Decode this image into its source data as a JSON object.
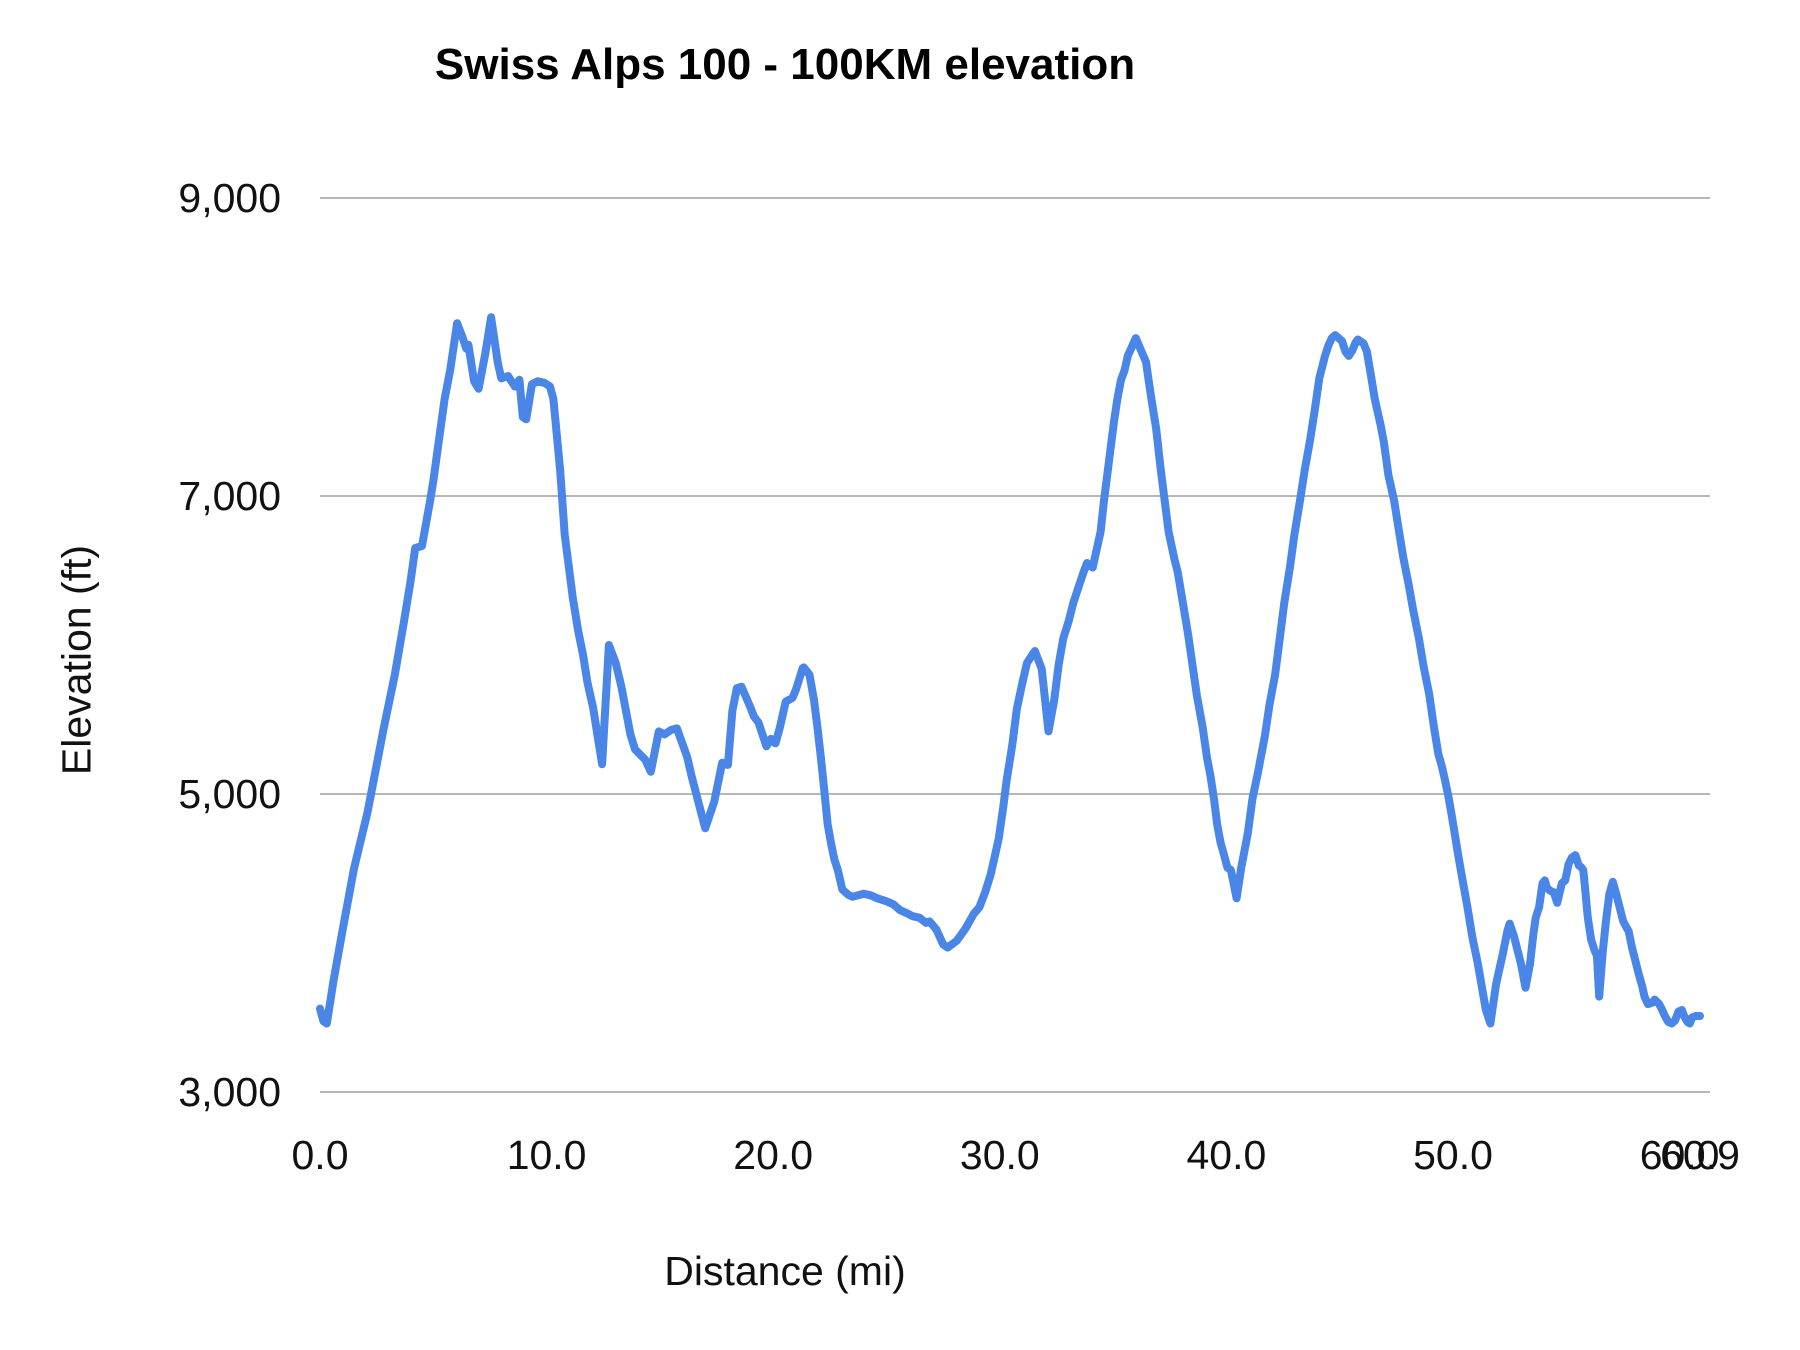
{
  "chart_title": "Swiss Alps 100 - 100KM elevation",
  "y_axis": {
    "title": "Elevation (ft)",
    "tick_labels": [
      "9,000",
      "7,000",
      "5,000",
      "3,000"
    ]
  },
  "x_axis": {
    "title": "Distance (mi)",
    "tick_labels": [
      "0.0",
      "10.0",
      "20.0",
      "30.0",
      "40.0",
      "50.0",
      "60.0",
      "60.9"
    ]
  },
  "chart_data": {
    "type": "line",
    "title": "Swiss Alps 100 - 100KM elevation",
    "xlabel": "Distance (mi)",
    "ylabel": "Elevation (ft)",
    "x_range": [
      0,
      60.9
    ],
    "y_range": [
      3000,
      9000
    ],
    "y_gridlines": [
      9000,
      7000,
      5000,
      3000
    ],
    "x_tick_values": [
      0,
      10,
      20,
      30,
      40,
      50,
      60,
      60.9
    ],
    "legend_position": "none",
    "grid": "horizontal-only",
    "line_color": "#4a86e8",
    "gridline_color": "#b7b7b7",
    "background_color": "#ffffff",
    "series": [
      {
        "name": "Elevation (ft)",
        "points": [
          [
            0.0,
            3560
          ],
          [
            0.15,
            3475
          ],
          [
            0.3,
            3460
          ],
          [
            0.6,
            3750
          ],
          [
            1.0,
            4090
          ],
          [
            1.5,
            4500
          ],
          [
            2.1,
            4880
          ],
          [
            2.8,
            5430
          ],
          [
            3.3,
            5800
          ],
          [
            3.7,
            6150
          ],
          [
            4.0,
            6430
          ],
          [
            4.2,
            6650
          ],
          [
            4.5,
            6665
          ],
          [
            4.85,
            6960
          ],
          [
            5.0,
            7100
          ],
          [
            5.5,
            7650
          ],
          [
            5.75,
            7850
          ],
          [
            6.05,
            8160
          ],
          [
            6.3,
            8060
          ],
          [
            6.45,
            7990
          ],
          [
            6.55,
            8015
          ],
          [
            6.8,
            7770
          ],
          [
            7.0,
            7720
          ],
          [
            7.3,
            7960
          ],
          [
            7.55,
            8200
          ],
          [
            7.85,
            7890
          ],
          [
            8.0,
            7790
          ],
          [
            8.3,
            7805
          ],
          [
            8.6,
            7735
          ],
          [
            8.8,
            7780
          ],
          [
            8.95,
            7530
          ],
          [
            9.1,
            7515
          ],
          [
            9.35,
            7750
          ],
          [
            9.6,
            7770
          ],
          [
            9.9,
            7760
          ],
          [
            10.15,
            7735
          ],
          [
            10.3,
            7650
          ],
          [
            10.6,
            7170
          ],
          [
            10.8,
            6740
          ],
          [
            11.0,
            6500
          ],
          [
            11.15,
            6320
          ],
          [
            11.4,
            6090
          ],
          [
            11.6,
            5940
          ],
          [
            11.8,
            5750
          ],
          [
            12.05,
            5580
          ],
          [
            12.45,
            5200
          ],
          [
            12.75,
            6000
          ],
          [
            13.05,
            5880
          ],
          [
            13.3,
            5720
          ],
          [
            13.7,
            5400
          ],
          [
            13.9,
            5300
          ],
          [
            14.35,
            5230
          ],
          [
            14.6,
            5150
          ],
          [
            14.95,
            5420
          ],
          [
            15.2,
            5400
          ],
          [
            15.5,
            5430
          ],
          [
            15.75,
            5440
          ],
          [
            16.2,
            5250
          ],
          [
            16.4,
            5120
          ],
          [
            17.0,
            4770
          ],
          [
            17.4,
            4950
          ],
          [
            17.75,
            5210
          ],
          [
            18.0,
            5195
          ],
          [
            18.2,
            5560
          ],
          [
            18.4,
            5710
          ],
          [
            18.6,
            5720
          ],
          [
            19.0,
            5580
          ],
          [
            19.15,
            5520
          ],
          [
            19.35,
            5480
          ],
          [
            19.7,
            5320
          ],
          [
            19.9,
            5370
          ],
          [
            20.1,
            5340
          ],
          [
            20.3,
            5450
          ],
          [
            20.55,
            5620
          ],
          [
            20.85,
            5645
          ],
          [
            21.0,
            5700
          ],
          [
            21.3,
            5845
          ],
          [
            21.35,
            5850
          ],
          [
            21.6,
            5800
          ],
          [
            21.8,
            5630
          ],
          [
            21.95,
            5450
          ],
          [
            22.1,
            5250
          ],
          [
            22.25,
            5030
          ],
          [
            22.4,
            4800
          ],
          [
            22.55,
            4670
          ],
          [
            22.7,
            4560
          ],
          [
            22.85,
            4490
          ],
          [
            23.05,
            4360
          ],
          [
            23.3,
            4325
          ],
          [
            23.5,
            4310
          ],
          [
            24.0,
            4330
          ],
          [
            24.3,
            4320
          ],
          [
            24.6,
            4300
          ],
          [
            25.0,
            4280
          ],
          [
            25.3,
            4260
          ],
          [
            25.6,
            4220
          ],
          [
            25.9,
            4200
          ],
          [
            26.15,
            4180
          ],
          [
            26.45,
            4170
          ],
          [
            26.75,
            4135
          ],
          [
            26.9,
            4145
          ],
          [
            27.2,
            4090
          ],
          [
            27.5,
            3990
          ],
          [
            27.7,
            3970
          ],
          [
            28.1,
            4015
          ],
          [
            28.5,
            4100
          ],
          [
            28.85,
            4195
          ],
          [
            29.1,
            4240
          ],
          [
            29.35,
            4340
          ],
          [
            29.6,
            4460
          ],
          [
            29.95,
            4700
          ],
          [
            30.15,
            4910
          ],
          [
            30.3,
            5090
          ],
          [
            30.55,
            5330
          ],
          [
            30.75,
            5570
          ],
          [
            31.0,
            5750
          ],
          [
            31.2,
            5880
          ],
          [
            31.55,
            5960
          ],
          [
            31.85,
            5840
          ],
          [
            32.15,
            5420
          ],
          [
            32.4,
            5630
          ],
          [
            32.6,
            5870
          ],
          [
            32.8,
            6045
          ],
          [
            33.05,
            6165
          ],
          [
            33.25,
            6285
          ],
          [
            33.5,
            6400
          ],
          [
            33.7,
            6490
          ],
          [
            33.85,
            6550
          ],
          [
            34.1,
            6520
          ],
          [
            34.45,
            6760
          ],
          [
            34.6,
            6970
          ],
          [
            34.75,
            7150
          ],
          [
            34.9,
            7330
          ],
          [
            35.05,
            7510
          ],
          [
            35.2,
            7660
          ],
          [
            35.35,
            7780
          ],
          [
            35.5,
            7840
          ],
          [
            35.65,
            7940
          ],
          [
            36.0,
            8060
          ],
          [
            36.45,
            7900
          ],
          [
            36.65,
            7690
          ],
          [
            36.9,
            7450
          ],
          [
            37.1,
            7180
          ],
          [
            37.25,
            7000
          ],
          [
            37.45,
            6760
          ],
          [
            37.7,
            6580
          ],
          [
            37.85,
            6490
          ],
          [
            38.05,
            6310
          ],
          [
            38.3,
            6080
          ],
          [
            38.5,
            5870
          ],
          [
            38.7,
            5660
          ],
          [
            38.95,
            5450
          ],
          [
            39.15,
            5240
          ],
          [
            39.3,
            5120
          ],
          [
            39.45,
            4970
          ],
          [
            39.6,
            4790
          ],
          [
            39.75,
            4670
          ],
          [
            39.9,
            4590
          ],
          [
            40.05,
            4505
          ],
          [
            40.2,
            4490
          ],
          [
            40.45,
            4300
          ],
          [
            40.65,
            4500
          ],
          [
            40.95,
            4740
          ],
          [
            41.15,
            4970
          ],
          [
            41.4,
            5150
          ],
          [
            41.7,
            5390
          ],
          [
            41.9,
            5600
          ],
          [
            42.15,
            5800
          ],
          [
            42.35,
            6040
          ],
          [
            42.55,
            6280
          ],
          [
            42.8,
            6520
          ],
          [
            43.0,
            6740
          ],
          [
            43.25,
            6970
          ],
          [
            43.45,
            7170
          ],
          [
            43.7,
            7380
          ],
          [
            43.9,
            7580
          ],
          [
            44.1,
            7790
          ],
          [
            44.35,
            7940
          ],
          [
            44.5,
            8010
          ],
          [
            44.65,
            8060
          ],
          [
            44.8,
            8080
          ],
          [
            45.1,
            8040
          ],
          [
            45.25,
            7970
          ],
          [
            45.4,
            7940
          ],
          [
            45.55,
            7975
          ],
          [
            45.7,
            8030
          ],
          [
            45.8,
            8050
          ],
          [
            46.05,
            8025
          ],
          [
            46.2,
            7970
          ],
          [
            46.4,
            7790
          ],
          [
            46.55,
            7650
          ],
          [
            46.8,
            7480
          ],
          [
            46.95,
            7360
          ],
          [
            47.15,
            7140
          ],
          [
            47.4,
            6970
          ],
          [
            47.6,
            6780
          ],
          [
            47.8,
            6590
          ],
          [
            48.05,
            6400
          ],
          [
            48.25,
            6230
          ],
          [
            48.5,
            6040
          ],
          [
            48.7,
            5860
          ],
          [
            48.95,
            5670
          ],
          [
            49.15,
            5460
          ],
          [
            49.35,
            5270
          ],
          [
            49.5,
            5190
          ],
          [
            49.65,
            5090
          ],
          [
            49.8,
            4980
          ],
          [
            49.95,
            4850
          ],
          [
            50.1,
            4710
          ],
          [
            50.25,
            4570
          ],
          [
            50.4,
            4440
          ],
          [
            50.65,
            4230
          ],
          [
            50.85,
            4040
          ],
          [
            51.1,
            3860
          ],
          [
            51.3,
            3680
          ],
          [
            51.45,
            3550
          ],
          [
            51.65,
            3460
          ],
          [
            51.9,
            3725
          ],
          [
            52.2,
            3930
          ],
          [
            52.4,
            4080
          ],
          [
            52.5,
            4130
          ],
          [
            52.7,
            4040
          ],
          [
            53.0,
            3860
          ],
          [
            53.2,
            3700
          ],
          [
            53.4,
            3860
          ],
          [
            53.55,
            4060
          ],
          [
            53.65,
            4170
          ],
          [
            53.8,
            4240
          ],
          [
            53.95,
            4400
          ],
          [
            54.05,
            4420
          ],
          [
            54.15,
            4370
          ],
          [
            54.3,
            4350
          ],
          [
            54.45,
            4340
          ],
          [
            54.6,
            4270
          ],
          [
            54.8,
            4400
          ],
          [
            54.95,
            4420
          ],
          [
            55.1,
            4530
          ],
          [
            55.25,
            4575
          ],
          [
            55.4,
            4590
          ],
          [
            55.55,
            4520
          ],
          [
            55.65,
            4510
          ],
          [
            55.75,
            4490
          ],
          [
            55.85,
            4330
          ],
          [
            55.95,
            4170
          ],
          [
            56.1,
            4020
          ],
          [
            56.25,
            3950
          ],
          [
            56.35,
            3915
          ],
          [
            56.45,
            3640
          ],
          [
            56.6,
            3930
          ],
          [
            56.75,
            4150
          ],
          [
            56.9,
            4330
          ],
          [
            57.05,
            4410
          ],
          [
            57.2,
            4330
          ],
          [
            57.35,
            4240
          ],
          [
            57.5,
            4150
          ],
          [
            57.6,
            4120
          ],
          [
            57.75,
            4080
          ],
          [
            57.9,
            3970
          ],
          [
            58.05,
            3880
          ],
          [
            58.2,
            3790
          ],
          [
            58.35,
            3710
          ],
          [
            58.45,
            3640
          ],
          [
            58.6,
            3590
          ],
          [
            58.8,
            3600
          ],
          [
            58.9,
            3620
          ],
          [
            59.1,
            3590
          ],
          [
            59.2,
            3560
          ],
          [
            59.35,
            3510
          ],
          [
            59.5,
            3470
          ],
          [
            59.65,
            3460
          ],
          [
            59.8,
            3480
          ],
          [
            59.95,
            3540
          ],
          [
            60.1,
            3550
          ],
          [
            60.2,
            3510
          ],
          [
            60.35,
            3470
          ],
          [
            60.45,
            3460
          ],
          [
            60.55,
            3500
          ],
          [
            60.7,
            3510
          ],
          [
            60.9,
            3510
          ]
        ]
      }
    ]
  }
}
